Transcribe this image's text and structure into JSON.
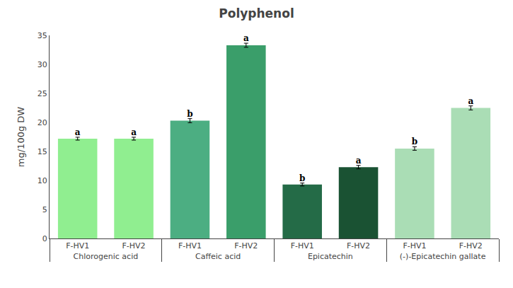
{
  "chart_data": {
    "type": "bar",
    "title": "Polyphenol",
    "ylabel": "mg/100g DW",
    "categories": [
      [
        "Chlorogenic acid",
        "F-HV1"
      ],
      [
        "Chlorogenic acid",
        "F-HV2"
      ],
      [
        "Caffeic acid",
        "F-HV1"
      ],
      [
        "Caffeic acid",
        "F-HV2"
      ],
      [
        "Epicatechin",
        "F-HV1"
      ],
      [
        "Epicatechin",
        "F-HV2"
      ],
      [
        "(-)-Epicatechin gallate",
        "F-HV1"
      ],
      [
        "(-)-Epicatechin gallate",
        "F-HV2"
      ]
    ],
    "values": [
      17.2,
      17.2,
      20.3,
      33.3,
      9.3,
      12.3,
      15.5,
      22.5
    ],
    "errors": [
      0.25,
      0.25,
      0.35,
      0.35,
      0.25,
      0.3,
      0.3,
      0.35
    ],
    "annotations": [
      "a",
      "a",
      "b",
      "a",
      "b",
      "a",
      "b",
      "a"
    ],
    "colors": [
      "#90EE90",
      "#90EE90",
      "#4CAE82",
      "#3A9E6A",
      "#246B47",
      "#1A5233",
      "#AADDB5",
      "#AADDB5"
    ],
    "ylim": [
      0,
      35
    ],
    "yticks": [
      0,
      5,
      10,
      15,
      20,
      25,
      30,
      35
    ],
    "grid": false
  }
}
